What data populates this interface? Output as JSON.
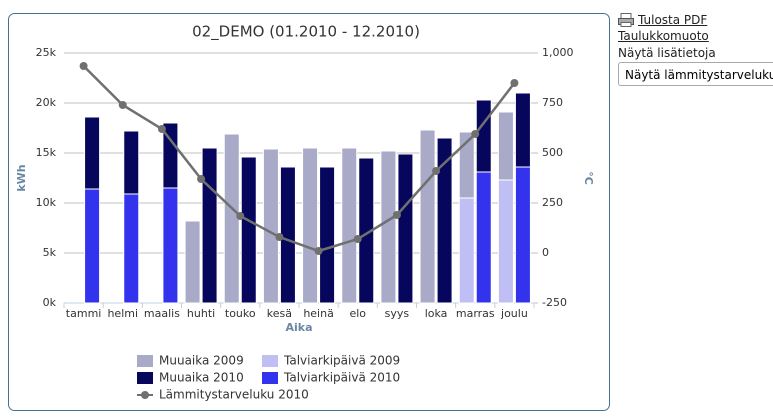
{
  "chart_data": {
    "type": "bar",
    "stacked": true,
    "title": "02_DEMO (01.2010 - 12.2010)",
    "x_label": "Aika",
    "y_label": "kWh",
    "y2_label": "°C",
    "categories": [
      "tammi",
      "helmi",
      "maalis",
      "huhti",
      "touko",
      "kesä",
      "heinä",
      "elo",
      "syys",
      "loka",
      "marras",
      "joulu"
    ],
    "series": [
      {
        "name": "Muuaika 2009",
        "color": "#a9a9c8",
        "values": [
          null,
          null,
          null,
          8200,
          16900,
          15400,
          15500,
          15500,
          15200,
          17300,
          6600,
          6800
        ]
      },
      {
        "name": "Talviarkipäivä 2009",
        "color": "#bfbff5",
        "values": [
          null,
          null,
          null,
          null,
          null,
          null,
          null,
          null,
          null,
          null,
          10500,
          12300
        ]
      },
      {
        "name": "Muuaika 2010",
        "color": "#06065c",
        "values": [
          7200,
          6300,
          6500,
          15500,
          14600,
          13600,
          13600,
          14500,
          14900,
          16500,
          7200,
          7400
        ]
      },
      {
        "name": "Talviarkipäivä 2010",
        "color": "#3333ee",
        "values": [
          11400,
          10900,
          11500,
          null,
          null,
          null,
          null,
          null,
          null,
          null,
          13100,
          13600
        ]
      },
      {
        "name": "Lämmitystarveluku 2010",
        "color": "#707070",
        "type": "line",
        "axis": "y2",
        "values": [
          935,
          740,
          620,
          370,
          185,
          80,
          10,
          70,
          190,
          410,
          595,
          850
        ]
      }
    ],
    "ylim": [
      0,
      25000
    ],
    "yticks": [
      {
        "value": 0,
        "label": "0k"
      },
      {
        "value": 5000,
        "label": "5k"
      },
      {
        "value": 10000,
        "label": "10k"
      },
      {
        "value": 15000,
        "label": "15k"
      },
      {
        "value": 20000,
        "label": "20k"
      },
      {
        "value": 25000,
        "label": "25k"
      }
    ],
    "y2lim": [
      -250,
      1000
    ],
    "y2ticks": [
      -250,
      0,
      250,
      500,
      750,
      {
        "value": 1000,
        "label": "1,000"
      }
    ],
    "grid": true,
    "legend": "bottom"
  },
  "sidebar": {
    "print": "Tulosta PDF",
    "table": "Taulukkomuoto",
    "details": "Näytä lisätietoja",
    "select": "Näytä lämmitystarveluku"
  }
}
